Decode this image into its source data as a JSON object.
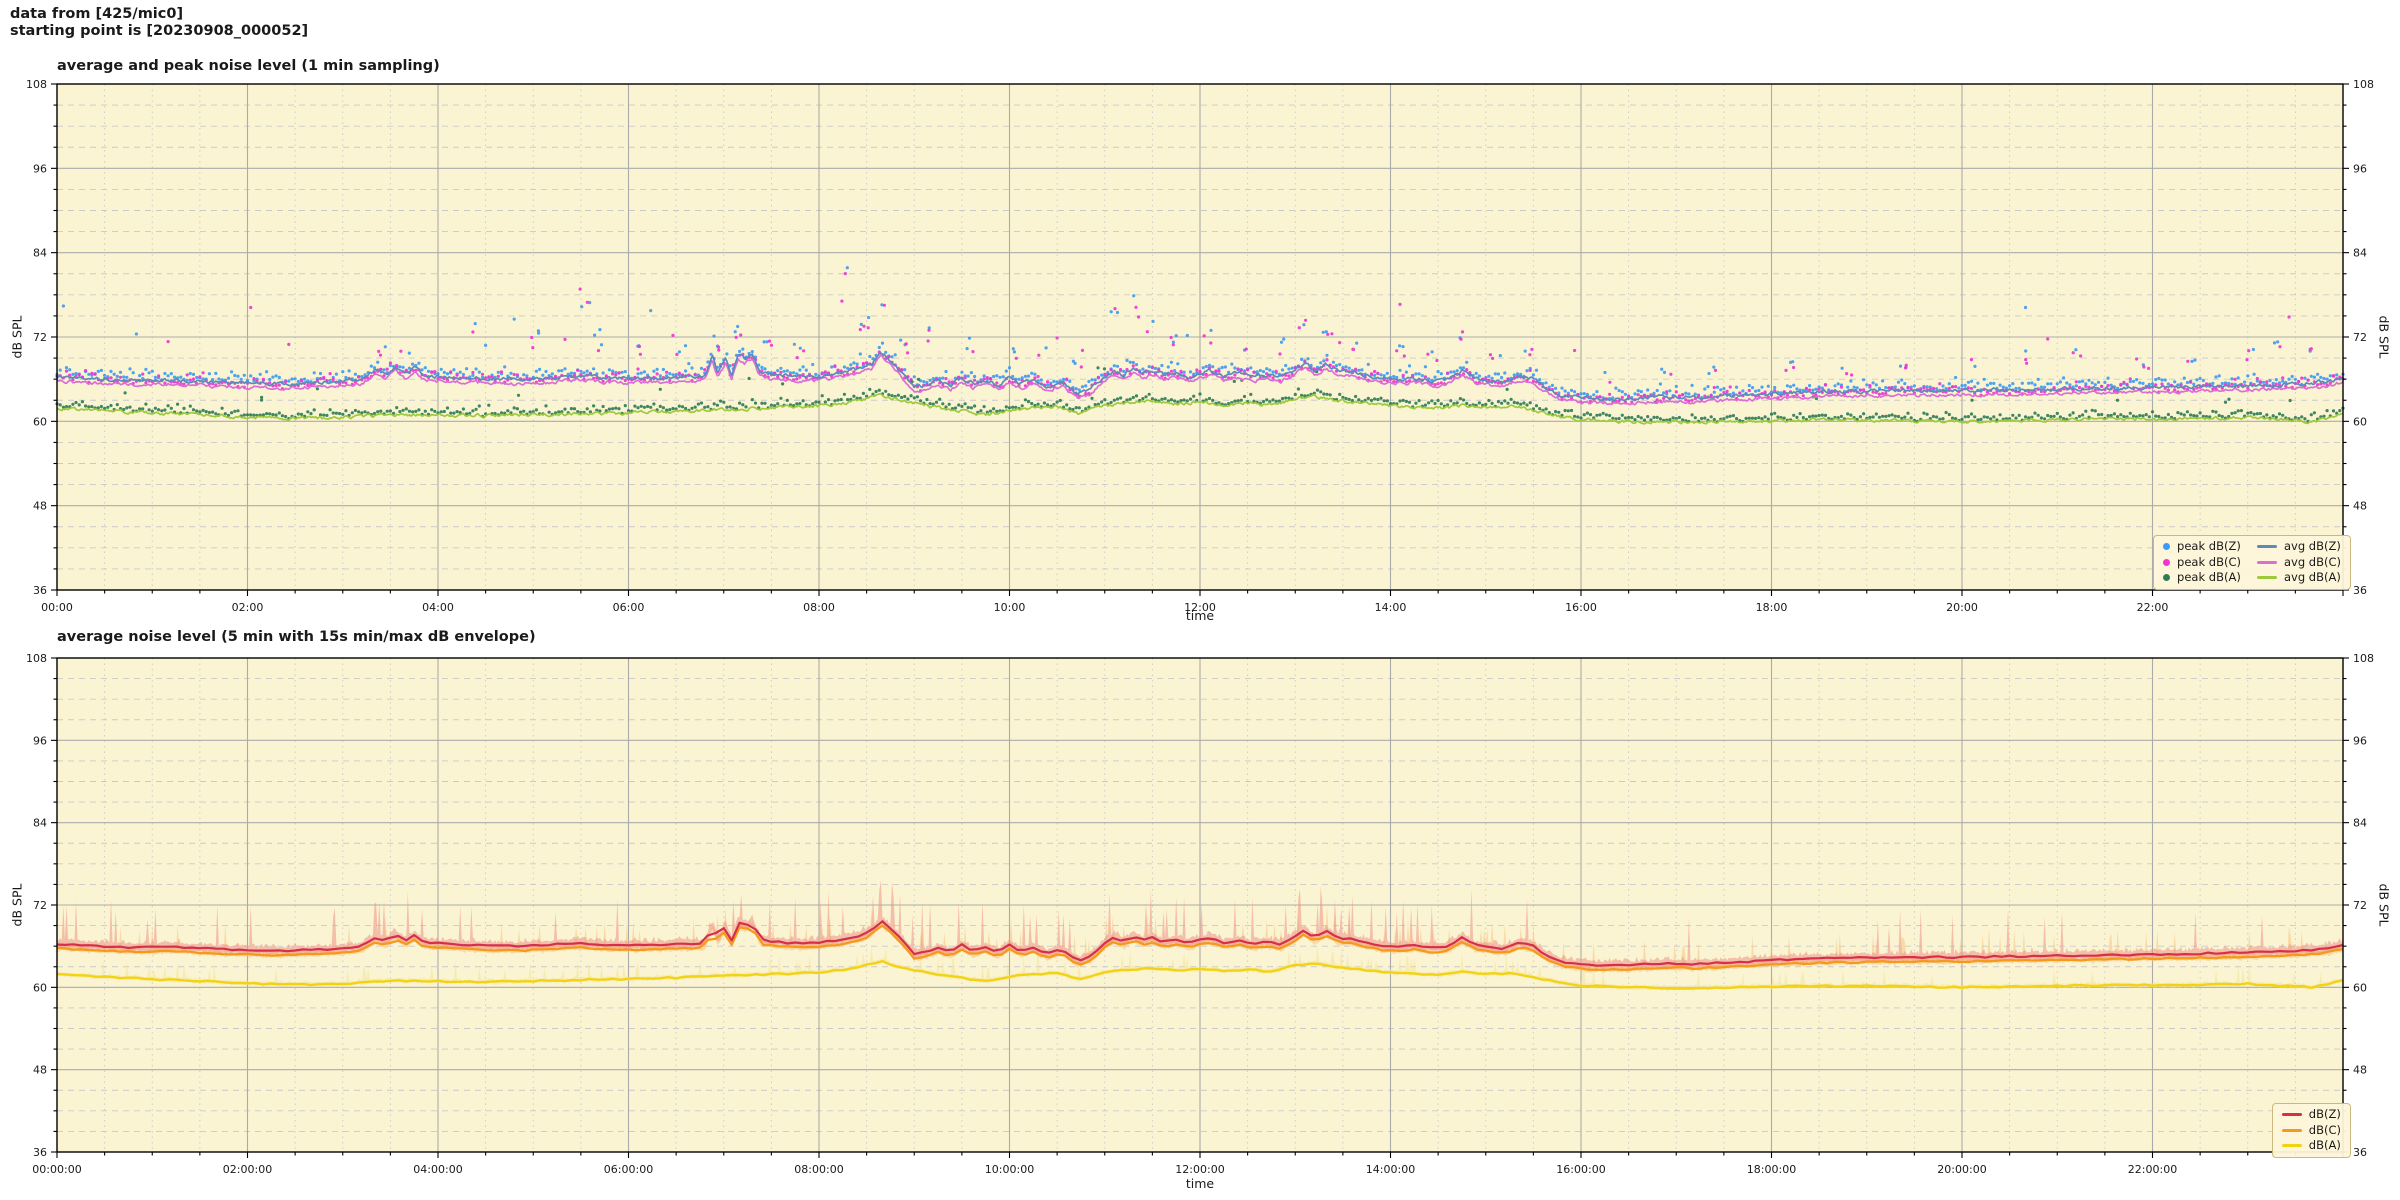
{
  "header": {
    "line1": "data from [425/mic0]",
    "line2": "starting point is [20230908_000052]"
  },
  "colors": {
    "figure_bg": "#ffffff",
    "axes_bg": "#fbf4d2",
    "grid_major": "#ababab",
    "grid_minor": "#c9c9c9",
    "spine": "#000000",
    "tick_text": "#1a1a1a",
    "legend_bg": "#fdf6da",
    "legend_border": "#c9b97e"
  },
  "chart_data": [
    {
      "type": "scatter+line",
      "title": "average and peak noise level (1 min sampling)",
      "xlabel": "time",
      "ylabel": "dB SPL",
      "ylim": [
        36,
        108
      ],
      "yticks": [
        36,
        48,
        60,
        72,
        84,
        96,
        108
      ],
      "y_minor_step": 3,
      "x_hours": 24,
      "xtick_step_hours": 2,
      "x_minor_step_hours": 0.5,
      "xtick_labels": [
        "00:00",
        "02:00",
        "04:00",
        "06:00",
        "08:00",
        "10:00",
        "12:00",
        "14:00",
        "16:00",
        "18:00",
        "20:00",
        "22:00"
      ],
      "grid": true,
      "legend_position": "lower right",
      "sampling": "1 min",
      "series_scatter": [
        {
          "name": "peak dB(Z)",
          "color": "#3f9bf0",
          "base": "Z",
          "typ_offset_db": 1.3,
          "outlier_max_db": 80
        },
        {
          "name": "peak dB(C)",
          "color": "#ee35d2",
          "base": "C",
          "typ_offset_db": 1.1,
          "outlier_max_db": 80
        },
        {
          "name": "peak dB(A)",
          "color": "#2f7d56",
          "base": "A",
          "typ_offset_db": 1.0,
          "outlier_max_db": 70
        }
      ],
      "series_lines": [
        {
          "name": "avg dB(C)",
          "color": "#d96fd4",
          "base": "C"
        },
        {
          "name": "avg dB(Z)",
          "color": "#5b8cb8",
          "base": "Z"
        },
        {
          "name": "avg dB(A)",
          "color": "#9fc93c",
          "base": "A"
        }
      ],
      "curves": {
        "note": "anchor points [hour, dB SPL] read off the plot; C tracks Z with constant offset",
        "C_offset_from_Z": -0.62,
        "Z": [
          [
            0,
            66.3
          ],
          [
            0.3,
            66.1
          ],
          [
            0.6,
            65.9
          ],
          [
            0.9,
            65.8
          ],
          [
            1.2,
            65.9
          ],
          [
            1.5,
            65.7
          ],
          [
            1.8,
            65.5
          ],
          [
            2.1,
            65.4
          ],
          [
            2.4,
            65.3
          ],
          [
            2.7,
            65.5
          ],
          [
            3.0,
            65.6
          ],
          [
            3.2,
            66.0
          ],
          [
            3.35,
            67.4
          ],
          [
            3.45,
            66.6
          ],
          [
            3.55,
            67.8
          ],
          [
            3.65,
            66.8
          ],
          [
            3.75,
            67.6
          ],
          [
            3.85,
            66.6
          ],
          [
            4.0,
            66.4
          ],
          [
            4.3,
            66.2
          ],
          [
            4.6,
            66.0
          ],
          [
            4.9,
            66.0
          ],
          [
            5.2,
            66.2
          ],
          [
            5.5,
            66.5
          ],
          [
            5.75,
            66.2
          ],
          [
            6.0,
            66.1
          ],
          [
            6.3,
            66.2
          ],
          [
            6.6,
            66.3
          ],
          [
            6.8,
            66.4
          ],
          [
            6.88,
            69.2
          ],
          [
            6.94,
            66.9
          ],
          [
            7.02,
            69.1
          ],
          [
            7.08,
            66.7
          ],
          [
            7.15,
            69.5
          ],
          [
            7.22,
            68.9
          ],
          [
            7.3,
            69.7
          ],
          [
            7.38,
            67.0
          ],
          [
            7.5,
            66.7
          ],
          [
            7.65,
            66.5
          ],
          [
            7.8,
            66.4
          ],
          [
            8.0,
            66.5
          ],
          [
            8.2,
            66.9
          ],
          [
            8.4,
            67.4
          ],
          [
            8.55,
            68.2
          ],
          [
            8.65,
            69.9
          ],
          [
            8.78,
            68.3
          ],
          [
            9.0,
            64.9
          ],
          [
            9.12,
            65.1
          ],
          [
            9.25,
            65.7
          ],
          [
            9.38,
            65.1
          ],
          [
            9.5,
            66.2
          ],
          [
            9.62,
            65.3
          ],
          [
            9.75,
            65.9
          ],
          [
            9.88,
            65.1
          ],
          [
            10.0,
            66.2
          ],
          [
            10.12,
            65.3
          ],
          [
            10.25,
            65.9
          ],
          [
            10.4,
            64.9
          ],
          [
            10.55,
            65.6
          ],
          [
            10.72,
            63.9
          ],
          [
            10.85,
            64.5
          ],
          [
            11.0,
            66.4
          ],
          [
            11.1,
            67.3
          ],
          [
            11.2,
            66.6
          ],
          [
            11.3,
            67.6
          ],
          [
            11.4,
            66.8
          ],
          [
            11.5,
            67.2
          ],
          [
            11.62,
            66.6
          ],
          [
            11.75,
            66.9
          ],
          [
            11.88,
            66.4
          ],
          [
            12.0,
            66.9
          ],
          [
            12.1,
            67.2
          ],
          [
            12.25,
            66.5
          ],
          [
            12.4,
            66.8
          ],
          [
            12.55,
            66.3
          ],
          [
            12.7,
            66.6
          ],
          [
            12.85,
            66.3
          ],
          [
            13.0,
            67.4
          ],
          [
            13.1,
            68.4
          ],
          [
            13.2,
            67.1
          ],
          [
            13.32,
            68.2
          ],
          [
            13.45,
            67.2
          ],
          [
            13.6,
            67.0
          ],
          [
            13.75,
            66.5
          ],
          [
            13.9,
            66.1
          ],
          [
            14.05,
            65.9
          ],
          [
            14.25,
            66.1
          ],
          [
            14.45,
            65.7
          ],
          [
            14.6,
            66.0
          ],
          [
            14.75,
            67.2
          ],
          [
            14.9,
            66.1
          ],
          [
            15.05,
            65.8
          ],
          [
            15.2,
            65.6
          ],
          [
            15.35,
            66.5
          ],
          [
            15.5,
            66.0
          ],
          [
            15.65,
            64.6
          ],
          [
            15.8,
            63.7
          ],
          [
            16.0,
            63.3
          ],
          [
            16.3,
            63.2
          ],
          [
            16.6,
            63.3
          ],
          [
            16.9,
            63.5
          ],
          [
            17.2,
            63.4
          ],
          [
            17.5,
            63.6
          ],
          [
            17.8,
            63.8
          ],
          [
            18.1,
            64.0
          ],
          [
            18.5,
            64.2
          ],
          [
            19.0,
            64.3
          ],
          [
            19.5,
            64.4
          ],
          [
            20.0,
            64.4
          ],
          [
            20.5,
            64.5
          ],
          [
            21.0,
            64.6
          ],
          [
            21.5,
            64.7
          ],
          [
            22.0,
            64.8
          ],
          [
            22.5,
            64.9
          ],
          [
            23.0,
            65.1
          ],
          [
            23.5,
            65.3
          ],
          [
            23.8,
            65.6
          ],
          [
            24,
            66.2
          ]
        ],
        "A": [
          [
            0,
            61.9
          ],
          [
            0.5,
            61.5
          ],
          [
            1.0,
            61.2
          ],
          [
            1.5,
            60.9
          ],
          [
            2.0,
            60.6
          ],
          [
            2.5,
            60.4
          ],
          [
            3.0,
            60.5
          ],
          [
            3.5,
            61.0
          ],
          [
            4.0,
            60.9
          ],
          [
            4.5,
            60.8
          ],
          [
            5.0,
            60.9
          ],
          [
            5.5,
            61.1
          ],
          [
            6.0,
            61.2
          ],
          [
            6.5,
            61.4
          ],
          [
            7.0,
            61.7
          ],
          [
            7.5,
            61.9
          ],
          [
            8.0,
            62.2
          ],
          [
            8.3,
            62.6
          ],
          [
            8.65,
            63.8
          ],
          [
            8.9,
            62.8
          ],
          [
            9.2,
            62.0
          ],
          [
            9.5,
            61.4
          ],
          [
            9.75,
            60.9
          ],
          [
            10.0,
            61.6
          ],
          [
            10.25,
            61.9
          ],
          [
            10.5,
            62.1
          ],
          [
            10.72,
            61.1
          ],
          [
            11.0,
            62.2
          ],
          [
            11.25,
            62.6
          ],
          [
            11.5,
            62.8
          ],
          [
            11.75,
            62.5
          ],
          [
            12.0,
            62.7
          ],
          [
            12.25,
            62.4
          ],
          [
            12.5,
            62.6
          ],
          [
            12.75,
            62.3
          ],
          [
            13.0,
            63.2
          ],
          [
            13.2,
            63.6
          ],
          [
            13.4,
            63.0
          ],
          [
            13.6,
            62.7
          ],
          [
            14.0,
            62.2
          ],
          [
            14.5,
            61.8
          ],
          [
            14.75,
            62.3
          ],
          [
            15.0,
            61.9
          ],
          [
            15.3,
            62.1
          ],
          [
            15.6,
            61.2
          ],
          [
            15.8,
            60.6
          ],
          [
            16.0,
            60.3
          ],
          [
            16.5,
            60.0
          ],
          [
            17.0,
            59.9
          ],
          [
            17.5,
            60.0
          ],
          [
            18.0,
            60.1
          ],
          [
            18.5,
            60.2
          ],
          [
            19.0,
            60.2
          ],
          [
            19.5,
            60.1
          ],
          [
            20.0,
            60.0
          ],
          [
            20.5,
            60.1
          ],
          [
            21.0,
            60.2
          ],
          [
            21.5,
            60.3
          ],
          [
            22.0,
            60.3
          ],
          [
            22.5,
            60.4
          ],
          [
            23.0,
            60.5
          ],
          [
            23.4,
            60.2
          ],
          [
            23.7,
            60.0
          ],
          [
            24,
            61.0
          ]
        ]
      },
      "peak_outlier_events": {
        "zc": [
          [
            3.4,
            3.5
          ],
          [
            3.65,
            3.2
          ],
          [
            4.35,
            7
          ],
          [
            5.0,
            6
          ],
          [
            5.55,
            12
          ],
          [
            5.7,
            5
          ],
          [
            6.1,
            4.5
          ],
          [
            6.55,
            4
          ],
          [
            6.9,
            4
          ],
          [
            7.15,
            4.5
          ],
          [
            7.45,
            5
          ],
          [
            7.8,
            4
          ],
          [
            8.3,
            13
          ],
          [
            8.5,
            6
          ],
          [
            8.65,
            8
          ],
          [
            8.9,
            5
          ],
          [
            9.15,
            7.5
          ],
          [
            9.6,
            5.5
          ],
          [
            10.05,
            4.5
          ],
          [
            10.35,
            5
          ],
          [
            10.7,
            4
          ],
          [
            11.1,
            8.5
          ],
          [
            11.3,
            9.5
          ],
          [
            11.45,
            7.5
          ],
          [
            11.7,
            5
          ],
          [
            12.1,
            5.5
          ],
          [
            12.5,
            4
          ],
          [
            12.9,
            4.5
          ],
          [
            13.1,
            6.5
          ],
          [
            13.35,
            5
          ],
          [
            13.6,
            4.5
          ],
          [
            14.1,
            4.5
          ],
          [
            14.45,
            4
          ],
          [
            14.75,
            5.5
          ],
          [
            15.1,
            4
          ],
          [
            15.45,
            4.5
          ],
          [
            16.3,
            3.5
          ],
          [
            16.9,
            4
          ],
          [
            17.4,
            4
          ],
          [
            18.2,
            4.5
          ],
          [
            18.8,
            3.5
          ],
          [
            19.4,
            4
          ],
          [
            20.1,
            4.5
          ],
          [
            20.7,
            5
          ],
          [
            21.2,
            5.5
          ],
          [
            21.9,
            4
          ],
          [
            22.4,
            4.5
          ],
          [
            23.0,
            5
          ],
          [
            23.3,
            6.5
          ],
          [
            23.65,
            5.5
          ]
        ],
        "a": [
          [
            0.7,
            3
          ],
          [
            2.2,
            2.8
          ],
          [
            4.8,
            2.6
          ],
          [
            6.3,
            3
          ],
          [
            7.6,
            4
          ],
          [
            9.0,
            3.5
          ],
          [
            10.9,
            6.5
          ],
          [
            11.05,
            5.5
          ],
          [
            12.4,
            3
          ],
          [
            13.2,
            3.5
          ],
          [
            15.2,
            3
          ],
          [
            16.8,
            2.6
          ],
          [
            18.5,
            2.8
          ],
          [
            20.1,
            2.6
          ],
          [
            21.6,
            3
          ],
          [
            22.8,
            2.8
          ],
          [
            23.5,
            3
          ]
        ]
      }
    },
    {
      "type": "line+envelope",
      "title": "average noise level (5 min with 15s min/max dB envelope)",
      "xlabel": "time",
      "ylabel": "dB SPL",
      "ylim": [
        36,
        108
      ],
      "yticks": [
        36,
        48,
        60,
        72,
        84,
        96,
        108
      ],
      "y_minor_step": 3,
      "x_hours": 24,
      "xtick_step_hours": 2,
      "x_minor_step_hours": 0.5,
      "xtick_labels": [
        "00:00:00",
        "02:00:00",
        "04:00:00",
        "06:00:00",
        "08:00:00",
        "10:00:00",
        "12:00:00",
        "14:00:00",
        "16:00:00",
        "18:00:00",
        "20:00:00",
        "22:00:00"
      ],
      "grid": true,
      "legend_position": "lower right",
      "sampling": "5 min",
      "envelope": "15s min/max",
      "series_lines": [
        {
          "name": "dB(Z)",
          "color": "#d62f4a",
          "env_color": "#ef9387",
          "base": "Z",
          "env_up_typ_db": 1.0,
          "env_up_spike_max_db": 8,
          "env_down_typ_db": 0.7
        },
        {
          "name": "dB(C)",
          "color": "#f5991d",
          "env_color": "#f6c583",
          "base": "C",
          "env_up_typ_db": 0.8,
          "env_up_spike_max_db": 5,
          "env_down_typ_db": 0.5
        },
        {
          "name": "dB(A)",
          "color": "#f2d313",
          "env_color": "#f4e49a",
          "base": "A",
          "env_up_typ_db": 0.5,
          "env_up_spike_max_db": 3,
          "env_down_typ_db": 0.4
        }
      ],
      "curves_same_as_chart": 0
    }
  ]
}
